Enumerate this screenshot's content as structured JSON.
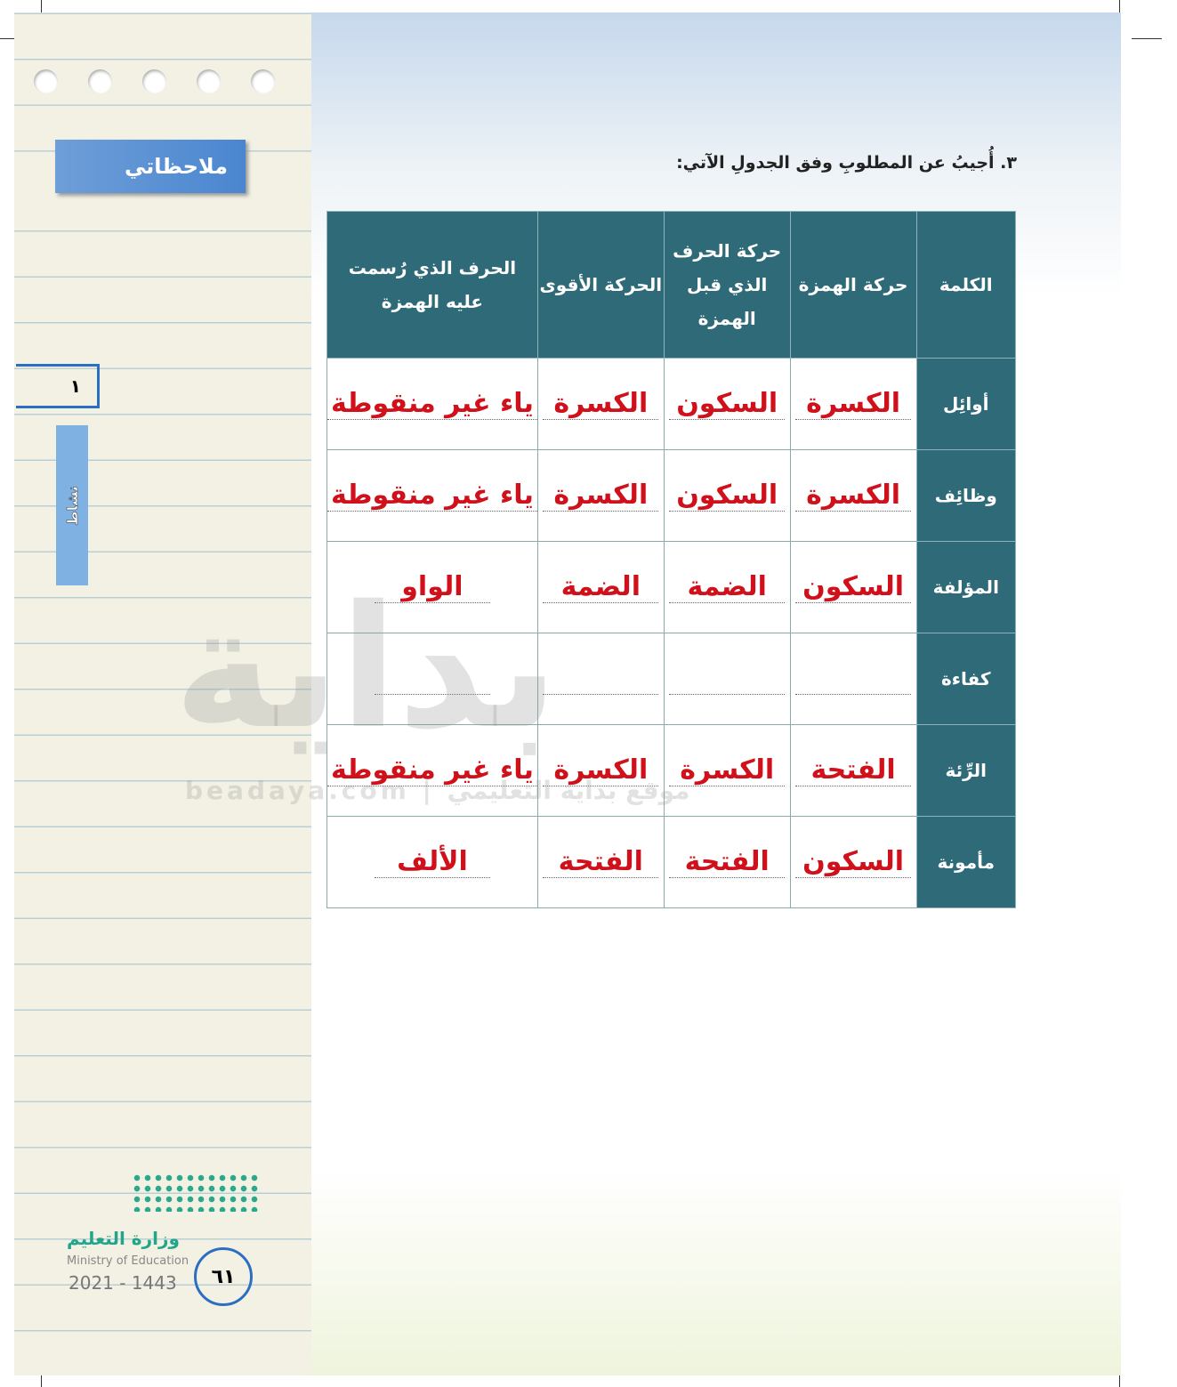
{
  "sidebar": {
    "title": "ملاحظاتي",
    "unit_number": "١",
    "tab_label": "نشاط"
  },
  "question": "٣. أُجيبُ عن المطلوبِ وفق الجدولِ الآتي:",
  "table": {
    "headers": [
      "الكلمة",
      "حركة الهمزة",
      "حركة الحرف الذي قبل الهمزة",
      "الحركة الأقوى",
      "الحرف الذي رُسمت عليه الهمزة"
    ],
    "rows": [
      [
        "أوائِل",
        "الكسرة",
        "السكون",
        "الكسرة",
        "ياء غير منقوطة"
      ],
      [
        "وظائِف",
        "الكسرة",
        "السكون",
        "الكسرة",
        "ياء غير منقوطة"
      ],
      [
        "المؤلفة",
        "السكون",
        "الضمة",
        "الضمة",
        "الواو"
      ],
      [
        "كفاءة",
        "",
        "",
        "",
        ""
      ],
      [
        "الرِّئة",
        "الفتحة",
        "الكسرة",
        "الكسرة",
        "ياء غير منقوطة"
      ],
      [
        "مأمونة",
        "السكون",
        "الفتحة",
        "الفتحة",
        "الألف"
      ]
    ]
  },
  "watermark": {
    "logo": "بداية",
    "text": "beadaya.com | موقع بداية التعليمي"
  },
  "footer": {
    "ministry_ar": "وزارة التعليم",
    "ministry_en": "Ministry of Education",
    "year": "2021 - 1443",
    "page": "٦١"
  },
  "colors": {
    "header": "#2f6a78",
    "answer": "#d0101a",
    "accent": "#2b6fc2"
  }
}
